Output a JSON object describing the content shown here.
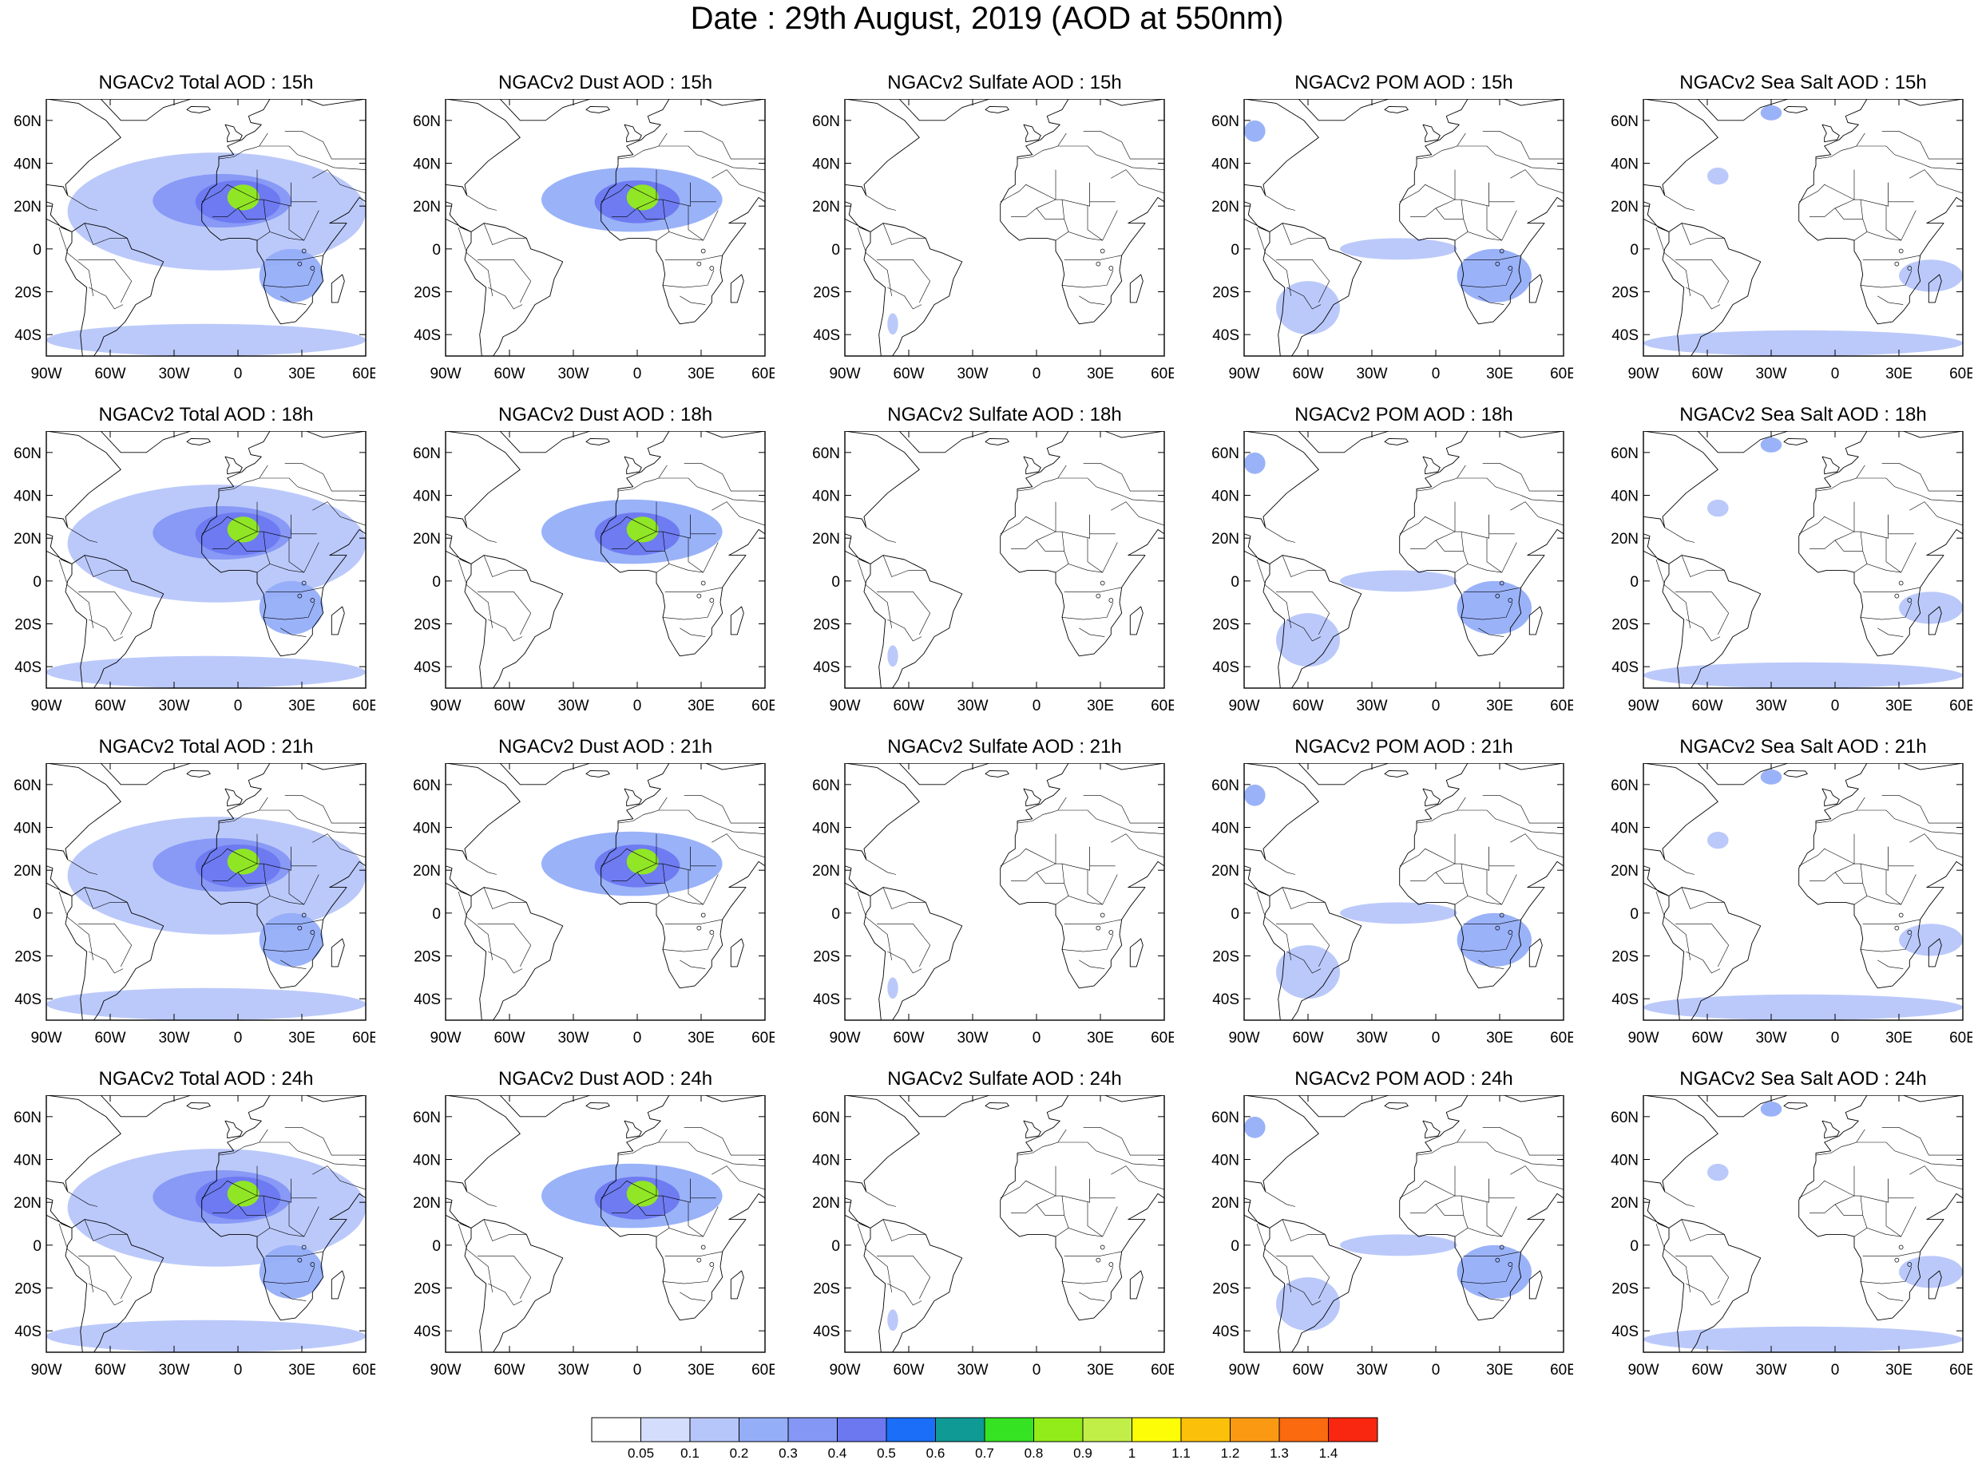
{
  "title": "Date : 29th August, 2019 (AOD at 550nm)",
  "panel_titles": [
    [
      "NGACv2 Total AOD : 15h",
      "NGACv2 Dust AOD : 15h",
      "NGACv2 Sulfate AOD : 15h",
      "NGACv2 POM AOD : 15h",
      "NGACv2 Sea Salt AOD : 15h"
    ],
    [
      "NGACv2 Total AOD : 18h",
      "NGACv2 Dust AOD : 18h",
      "NGACv2 Sulfate AOD : 18h",
      "NGACv2 POM AOD : 18h",
      "NGACv2 Sea Salt AOD : 18h"
    ],
    [
      "NGACv2 Total AOD : 21h",
      "NGACv2 Dust AOD : 21h",
      "NGACv2 Sulfate AOD : 21h",
      "NGACv2 POM AOD : 21h",
      "NGACv2 Sea Salt AOD : 21h"
    ],
    [
      "NGACv2 Total AOD : 24h",
      "NGACv2 Dust AOD : 24h",
      "NGACv2 Sulfate AOD : 24h",
      "NGACv2 POM AOD : 24h",
      "NGACv2 Sea Salt  AOD : 24h"
    ]
  ],
  "map": {
    "lon_range": [
      -90,
      60
    ],
    "lat_range": [
      -50,
      70
    ],
    "lon_ticks": [
      {
        "value": -90,
        "label": "90W"
      },
      {
        "value": -60,
        "label": "60W"
      },
      {
        "value": -30,
        "label": "30W"
      },
      {
        "value": 0,
        "label": "0"
      },
      {
        "value": 30,
        "label": "30E"
      },
      {
        "value": 60,
        "label": "60E"
      }
    ],
    "lat_ticks": [
      {
        "value": 60,
        "label": "60N"
      },
      {
        "value": 40,
        "label": "40N"
      },
      {
        "value": 20,
        "label": "20N"
      },
      {
        "value": 0,
        "label": "0"
      },
      {
        "value": -20,
        "label": "20S"
      },
      {
        "value": -40,
        "label": "40S"
      }
    ]
  },
  "colorbar": {
    "levels": [
      "0.05",
      "0.1",
      "0.2",
      "0.3",
      "0.4",
      "0.5",
      "0.6",
      "0.7",
      "0.8",
      "0.9",
      "1",
      "1.1",
      "1.2",
      "1.3",
      "1.4"
    ],
    "colors": [
      "#ffffff",
      "#d4defc",
      "#b7c6fa",
      "#95aef8",
      "#8597f5",
      "#6c78f0",
      "#1a6ef8",
      "#0f9a96",
      "#35e322",
      "#92ec19",
      "#c2ee48",
      "#fdfd08",
      "#fbc10a",
      "#fb9a12",
      "#fb6a0f",
      "#f9270f"
    ]
  },
  "chart_data": {
    "type": "heatmap",
    "title": "Date : 29th August, 2019 (AOD at 550nm)",
    "variables": [
      "Total",
      "Dust",
      "Sulfate",
      "POM",
      "Sea Salt"
    ],
    "forecast_hours": [
      "15h",
      "18h",
      "21h",
      "24h"
    ],
    "xlim": [
      -90,
      60
    ],
    "ylim": [
      -50,
      70
    ],
    "fields": {
      "Total": [
        {
          "lon": [
            -40,
            25
          ],
          "lat": [
            10,
            35
          ],
          "aod": 0.3
        },
        {
          "lon": [
            -20,
            20
          ],
          "lat": [
            12,
            32
          ],
          "aod": 0.4
        },
        {
          "lon": [
            -5,
            10
          ],
          "lat": [
            18,
            30
          ],
          "aod": 0.8
        },
        {
          "lon": [
            -80,
            60
          ],
          "lat": [
            -10,
            45
          ],
          "aod": 0.1
        },
        {
          "lon": [
            10,
            40
          ],
          "lat": [
            -25,
            0
          ],
          "aod": 0.2
        },
        {
          "lon": [
            -90,
            60
          ],
          "lat": [
            -50,
            -35
          ],
          "aod": 0.1
        }
      ],
      "Dust": [
        {
          "lon": [
            -45,
            40
          ],
          "lat": [
            8,
            38
          ],
          "aod": 0.2
        },
        {
          "lon": [
            -20,
            20
          ],
          "lat": [
            12,
            32
          ],
          "aod": 0.4
        },
        {
          "lon": [
            -5,
            10
          ],
          "lat": [
            18,
            30
          ],
          "aod": 0.8
        }
      ],
      "Sulfate": [
        {
          "lon": [
            -70,
            -65
          ],
          "lat": [
            -40,
            -30
          ],
          "aod": 0.1
        }
      ],
      "POM": [
        {
          "lon": [
            -45,
            10
          ],
          "lat": [
            -5,
            5
          ],
          "aod": 0.1
        },
        {
          "lon": [
            10,
            45
          ],
          "lat": [
            -25,
            0
          ],
          "aod": 0.2
        },
        {
          "lon": [
            -75,
            -45
          ],
          "lat": [
            -40,
            -15
          ],
          "aod": 0.1
        },
        {
          "lon": [
            -90,
            -80
          ],
          "lat": [
            50,
            60
          ],
          "aod": 0.2
        }
      ],
      "Sea Salt": [
        {
          "lon": [
            -90,
            60
          ],
          "lat": [
            -50,
            -38
          ],
          "aod": 0.1
        },
        {
          "lon": [
            -35,
            -25
          ],
          "lat": [
            60,
            67
          ],
          "aod": 0.2
        },
        {
          "lon": [
            -60,
            -50
          ],
          "lat": [
            30,
            38
          ],
          "aod": 0.1
        },
        {
          "lon": [
            30,
            60
          ],
          "lat": [
            -20,
            -5
          ],
          "aod": 0.1
        }
      ]
    }
  }
}
